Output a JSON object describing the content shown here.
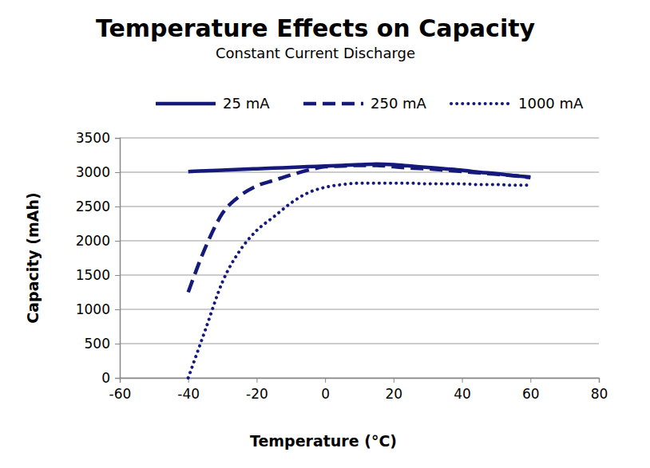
{
  "chart_data": {
    "type": "line",
    "title": "Temperature Effects on Capacity",
    "subtitle": "Constant Current Discharge",
    "x_label": "Temperature (°C)",
    "y_label": "Capacity (mAh)",
    "x": [
      -40,
      -35,
      -30,
      -25,
      -20,
      -15,
      -10,
      -5,
      0,
      5,
      10,
      15,
      20,
      25,
      30,
      35,
      40,
      45,
      50,
      55,
      60
    ],
    "series": [
      {
        "name": "25 mA",
        "color": "#14197a",
        "line_style": "solid",
        "values": [
          3010,
          3020,
          3030,
          3040,
          3050,
          3060,
          3070,
          3080,
          3090,
          3100,
          3110,
          3120,
          3110,
          3090,
          3070,
          3050,
          3030,
          3000,
          2980,
          2950,
          2930
        ]
      },
      {
        "name": "250 mA",
        "color": "#14197a",
        "line_style": "dashed",
        "values": [
          1250,
          1900,
          2400,
          2650,
          2800,
          2880,
          2960,
          3030,
          3080,
          3090,
          3100,
          3100,
          3080,
          3060,
          3050,
          3030,
          3010,
          2990,
          2970,
          2950,
          2920
        ]
      },
      {
        "name": "1000 mA",
        "color": "#14197a",
        "line_style": "dotted",
        "values": [
          0,
          700,
          1400,
          1850,
          2150,
          2350,
          2550,
          2700,
          2780,
          2820,
          2840,
          2840,
          2840,
          2840,
          2830,
          2830,
          2830,
          2820,
          2820,
          2810,
          2810
        ]
      }
    ],
    "xlim": [
      -60,
      80
    ],
    "xticks": [
      -60,
      -40,
      -20,
      0,
      20,
      40,
      60,
      80
    ],
    "ylim": [
      0,
      3500
    ],
    "yticks": [
      0,
      500,
      1000,
      1500,
      2000,
      2500,
      3000,
      3500
    ],
    "grid": true,
    "legend": "top",
    "marker": "none"
  }
}
